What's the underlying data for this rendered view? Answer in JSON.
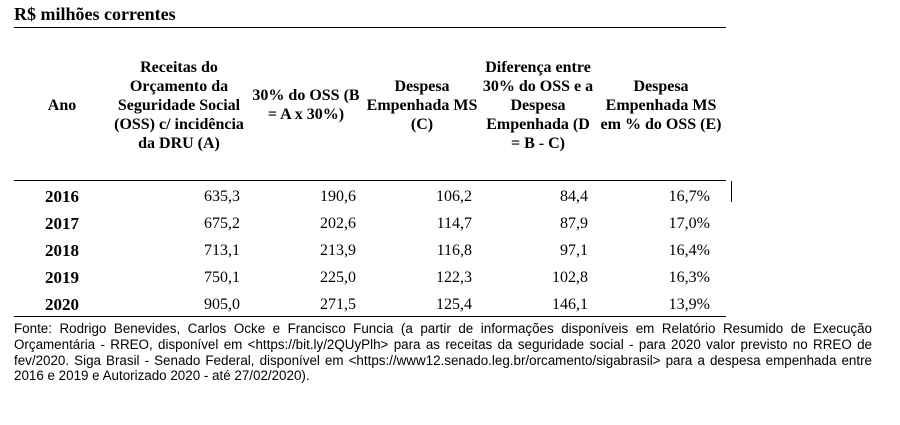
{
  "caption": "R$ milhões correntes",
  "table": {
    "headers": [
      "Ano",
      "Receitas do Orçamento da Seguridade Social (OSS) c/ incidência da DRU (A)",
      "30% do OSS (B = A x 30%)",
      "Despesa Empenhada MS (C)",
      "Diferença entre 30% do OSS e a Despesa Empenhada (D = B - C)",
      "Despesa Empenhada MS em % do OSS (E)"
    ],
    "rows": [
      [
        "2016",
        "635,3",
        "190,6",
        "106,2",
        "84,4",
        "16,7%"
      ],
      [
        "2017",
        "675,2",
        "202,6",
        "114,7",
        "87,9",
        "17,0%"
      ],
      [
        "2018",
        "713,1",
        "213,9",
        "116,8",
        "97,1",
        "16,4%"
      ],
      [
        "2019",
        "750,1",
        "225,0",
        "122,3",
        "102,8",
        "16,3%"
      ],
      [
        "2020",
        "905,0",
        "271,5",
        "125,4",
        "146,1",
        "13,9%"
      ]
    ]
  },
  "footnote": "Fonte: Rodrigo Benevides, Carlos Ocke e Francisco Funcia (a partir de informações disponíveis em Relatório Resumido de Execução Orçamentária - RREO, disponível em <https://bit.ly/2QUyPlh> para as receitas da seguridade social - para 2020 valor previsto no RREO de fev/2020. Siga Brasil - Senado Federal, disponível em <https://www12.senado.leg.br/orcamento/sigabrasil> para a despesa empenhada entre 2016 e 2019 e Autorizado 2020 - até 27/02/2020)."
}
